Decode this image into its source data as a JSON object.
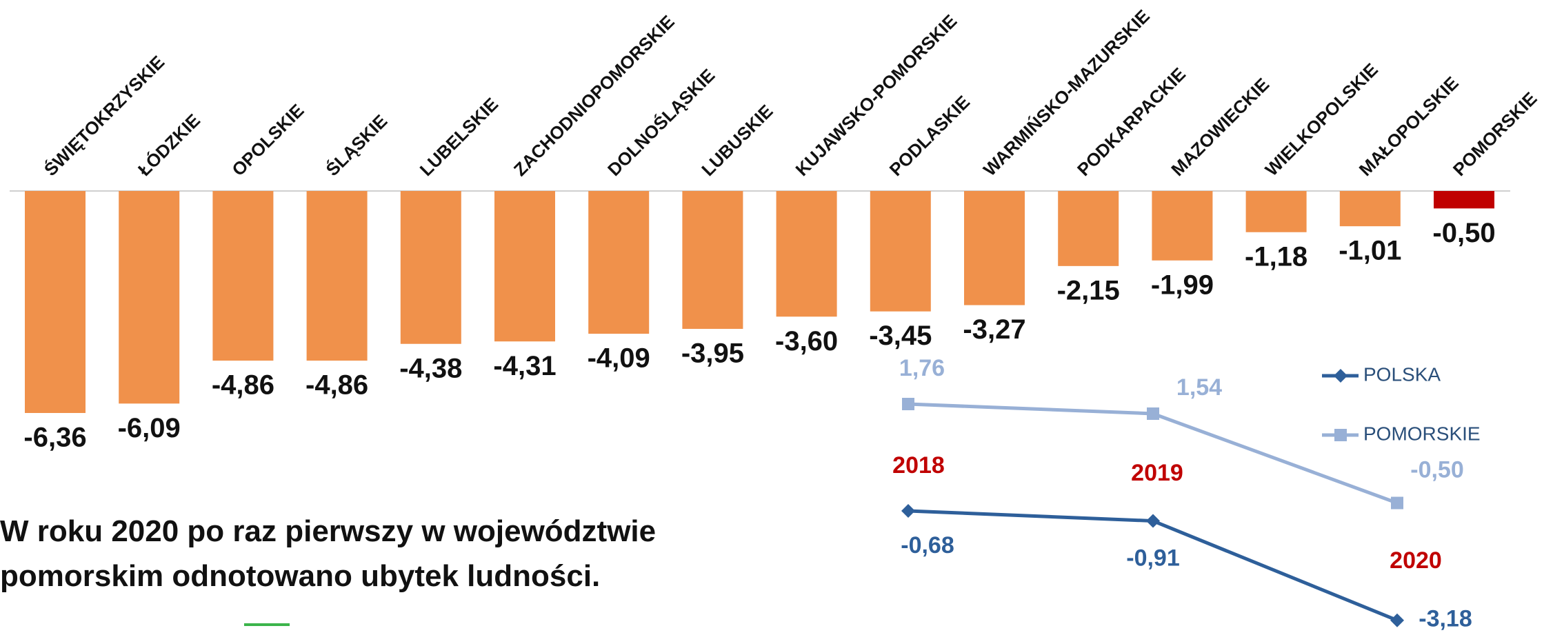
{
  "chart_data": [
    {
      "type": "bar",
      "categories": [
        "ŚWIĘTOKRZYSKIE",
        "ŁÓDZKIE",
        "OPOLSKIE",
        "ŚLĄSKIE",
        "LUBELSKIE",
        "ZACHODNIOPOMORSKIE",
        "DOLNOŚLĄSKIE",
        "LUBUSKIE",
        "KUJAWSKO-POMORSKIE",
        "PODLASKIE",
        "WARMIŃSKO-MAZURSKIE",
        "PODKARPACKIE",
        "MAZOWIECKIE",
        "WIELKOPOLSKIE",
        "MAŁOPOLSKIE",
        "POMORSKIE"
      ],
      "values": [
        -6.36,
        -6.09,
        -4.86,
        -4.86,
        -4.38,
        -4.31,
        -4.09,
        -3.95,
        -3.6,
        -3.45,
        -3.27,
        -2.15,
        -1.99,
        -1.18,
        -1.01,
        -0.5
      ],
      "value_labels": [
        "-6,36",
        "-6,09",
        "-4,86",
        "-4,86",
        "-4,38",
        "-4,31",
        "-4,09",
        "-3,95",
        "-3,60",
        "-3,45",
        "-3,27",
        "-2,15",
        "-1,99",
        "-1,18",
        "-1,01",
        "-0,50"
      ],
      "colors": [
        "#f0914b",
        "#f0914b",
        "#f0914b",
        "#f0914b",
        "#f0914b",
        "#f0914b",
        "#f0914b",
        "#f0914b",
        "#f0914b",
        "#f0914b",
        "#f0914b",
        "#f0914b",
        "#f0914b",
        "#f0914b",
        "#f0914b",
        "#c00000"
      ]
    },
    {
      "type": "line",
      "categories": [
        "2018",
        "2019",
        "2020"
      ],
      "series": [
        {
          "name": "POLSKA",
          "color": "#2e5f9a",
          "marker": "diamond",
          "values": [
            -0.68,
            -0.91,
            -3.18
          ],
          "value_labels": [
            "-0,68",
            "-0,91",
            "-3,18"
          ]
        },
        {
          "name": "POMORSKIE",
          "color": "#98b0d6",
          "marker": "square",
          "values": [
            1.76,
            1.54,
            -0.5
          ],
          "value_labels": [
            "1,76",
            "1,54",
            "-0,50"
          ]
        }
      ]
    }
  ],
  "note": {
    "lines": [
      "W roku 2020 po raz pierwszy w województwie",
      "pomorskim odnotowano ubytek ludności."
    ]
  }
}
